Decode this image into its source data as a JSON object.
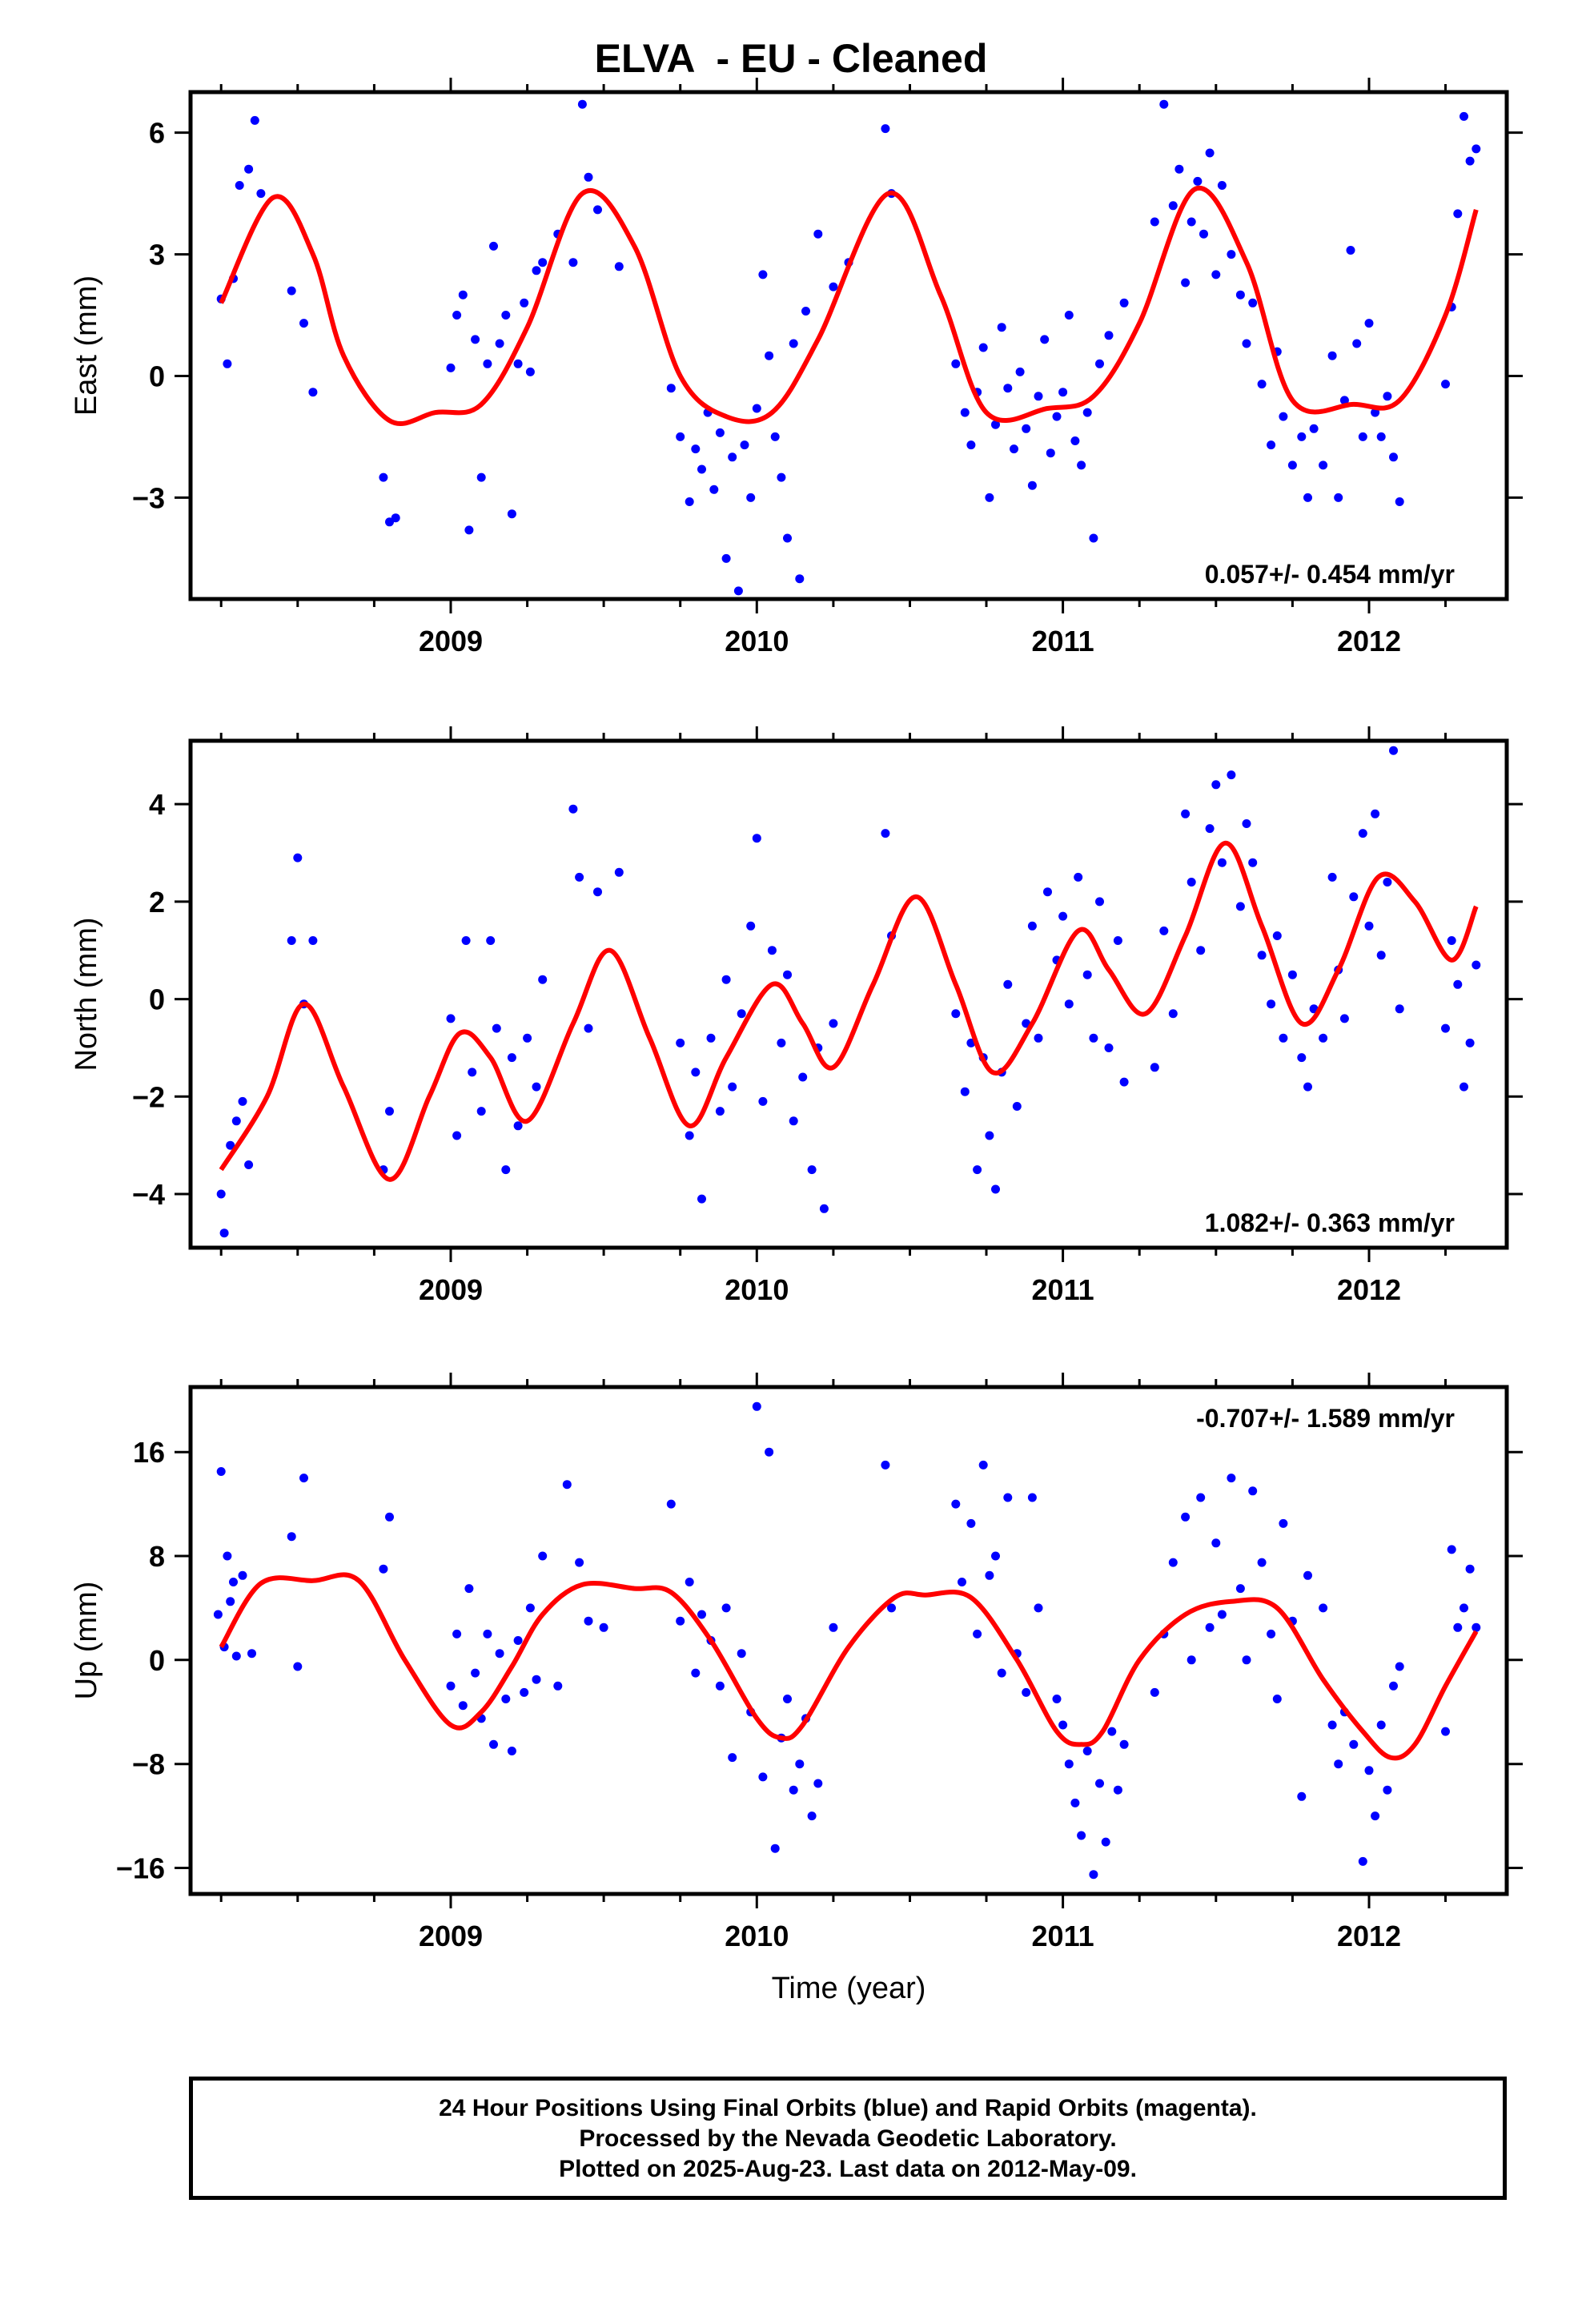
{
  "title": "ELVA  - EU - Cleaned",
  "footer": {
    "line1": "24 Hour Positions Using Final Orbits (blue) and Rapid Orbits (magenta).",
    "line2": "Processed by the Nevada Geodetic Laboratory.",
    "line3": "Plotted on 2025-Aug-23. Last data on 2012-May-09."
  },
  "colors": {
    "points": "#0000ff",
    "fit": "#ff0000",
    "axes": "#000000"
  },
  "chart_data": [
    {
      "type": "scatter",
      "ylabel": "East (mm)",
      "xlabel": "",
      "rate": "0.057+/- 0.454 mm/yr",
      "rate_position": "bottom-right",
      "xlim": [
        2008.15,
        2012.45
      ],
      "ylim": [
        -5.5,
        7
      ],
      "x_ticks": [
        2009,
        2010,
        2011,
        2012
      ],
      "y_ticks": [
        -3,
        0,
        3,
        6
      ],
      "y_tick_labels": [
        "−3",
        "0",
        "3",
        "6"
      ],
      "fit": {
        "x": [
          2008.25,
          2008.42,
          2008.55,
          2008.65,
          2008.8,
          2008.95,
          2009.1,
          2009.25,
          2009.43,
          2009.6,
          2009.75,
          2009.9,
          2010.05,
          2010.2,
          2010.43,
          2010.6,
          2010.75,
          2010.95,
          2011.1,
          2011.25,
          2011.43,
          2011.6,
          2011.75,
          2011.95,
          2012.1,
          2012.25,
          2012.35
        ],
        "y": [
          1.8,
          4.4,
          3.0,
          0.5,
          -1.1,
          -0.9,
          -0.7,
          1.2,
          4.5,
          3.2,
          0.0,
          -1.0,
          -0.9,
          0.9,
          4.5,
          2.0,
          -0.9,
          -0.8,
          -0.5,
          1.3,
          4.6,
          2.8,
          -0.6,
          -0.7,
          -0.6,
          1.5,
          4.1
        ]
      },
      "points": {
        "x": [
          2008.25,
          2008.27,
          2008.29,
          2008.31,
          2008.34,
          2008.36,
          2008.38,
          2008.48,
          2008.52,
          2008.55,
          2008.78,
          2008.8,
          2008.82,
          2009.0,
          2009.02,
          2009.04,
          2009.06,
          2009.08,
          2009.1,
          2009.12,
          2009.14,
          2009.16,
          2009.18,
          2009.2,
          2009.22,
          2009.24,
          2009.26,
          2009.28,
          2009.3,
          2009.35,
          2009.4,
          2009.43,
          2009.45,
          2009.48,
          2009.55,
          2009.72,
          2009.75,
          2009.78,
          2009.8,
          2009.82,
          2009.84,
          2009.86,
          2009.88,
          2009.9,
          2009.92,
          2009.94,
          2009.96,
          2009.98,
          2010.0,
          2010.02,
          2010.04,
          2010.06,
          2010.08,
          2010.1,
          2010.12,
          2010.14,
          2010.16,
          2010.2,
          2010.25,
          2010.3,
          2010.42,
          2010.44,
          2010.65,
          2010.68,
          2010.7,
          2010.72,
          2010.74,
          2010.76,
          2010.78,
          2010.8,
          2010.82,
          2010.84,
          2010.86,
          2010.88,
          2010.9,
          2010.92,
          2010.94,
          2010.96,
          2010.98,
          2011.0,
          2011.02,
          2011.04,
          2011.06,
          2011.08,
          2011.1,
          2011.12,
          2011.15,
          2011.2,
          2011.3,
          2011.33,
          2011.36,
          2011.38,
          2011.4,
          2011.42,
          2011.44,
          2011.46,
          2011.48,
          2011.5,
          2011.52,
          2011.55,
          2011.58,
          2011.6,
          2011.62,
          2011.65,
          2011.68,
          2011.7,
          2011.72,
          2011.75,
          2011.78,
          2011.8,
          2011.82,
          2011.85,
          2011.88,
          2011.9,
          2011.92,
          2011.94,
          2011.96,
          2011.98,
          2012.0,
          2012.02,
          2012.04,
          2012.06,
          2012.08,
          2012.1,
          2012.25,
          2012.27,
          2012.29,
          2012.31,
          2012.33,
          2012.35
        ],
        "y": [
          1.9,
          0.3,
          2.4,
          4.7,
          5.1,
          6.3,
          4.5,
          2.1,
          1.3,
          -0.4,
          -2.5,
          -3.6,
          -3.5,
          0.2,
          1.5,
          2.0,
          -3.8,
          0.9,
          -2.5,
          0.3,
          3.2,
          0.8,
          1.5,
          -3.4,
          0.3,
          1.8,
          0.1,
          2.6,
          2.8,
          3.5,
          2.8,
          6.7,
          4.9,
          4.1,
          2.7,
          -0.3,
          -1.5,
          -3.1,
          -1.8,
          -2.3,
          -0.9,
          -2.8,
          -1.4,
          -4.5,
          -2.0,
          -5.3,
          -1.7,
          -3.0,
          -0.8,
          2.5,
          0.5,
          -1.5,
          -2.5,
          -4.0,
          0.8,
          -5.0,
          1.6,
          3.5,
          2.2,
          2.8,
          6.1,
          4.5,
          0.3,
          -0.9,
          -1.7,
          -0.4,
          0.7,
          -3.0,
          -1.2,
          1.2,
          -0.3,
          -1.8,
          0.1,
          -1.3,
          -2.7,
          -0.5,
          0.9,
          -1.9,
          -1.0,
          -0.4,
          1.5,
          -1.6,
          -2.2,
          -0.9,
          -4.0,
          0.3,
          1.0,
          1.8,
          3.8,
          6.7,
          4.2,
          5.1,
          2.3,
          3.8,
          4.8,
          3.5,
          5.5,
          2.5,
          4.7,
          3.0,
          2.0,
          0.8,
          1.8,
          -0.2,
          -1.7,
          0.6,
          -1.0,
          -2.2,
          -1.5,
          -3.0,
          -1.3,
          -2.2,
          0.5,
          -3.0,
          -0.6,
          3.1,
          0.8,
          -1.5,
          1.3,
          -0.9,
          -1.5,
          -0.5,
          -2.0,
          -3.1,
          -0.2,
          1.7,
          4.0,
          6.4,
          5.3,
          5.6
        ]
      }
    },
    {
      "type": "scatter",
      "ylabel": "North (mm)",
      "xlabel": "",
      "rate": "1.082+/- 0.363 mm/yr",
      "rate_position": "bottom-right",
      "xlim": [
        2008.15,
        2012.45
      ],
      "ylim": [
        -5.1,
        5.3
      ],
      "x_ticks": [
        2009,
        2010,
        2011,
        2012
      ],
      "y_ticks": [
        -4,
        -2,
        0,
        2,
        4
      ],
      "y_tick_labels": [
        "−4",
        "−2",
        "0",
        "2",
        "4"
      ],
      "fit": {
        "x": [
          2008.25,
          2008.4,
          2008.52,
          2008.65,
          2008.8,
          2008.93,
          2009.03,
          2009.13,
          2009.25,
          2009.4,
          2009.52,
          2009.65,
          2009.78,
          2009.9,
          2010.05,
          2010.15,
          2010.25,
          2010.38,
          2010.52,
          2010.65,
          2010.77,
          2010.9,
          2011.05,
          2011.15,
          2011.27,
          2011.4,
          2011.53,
          2011.65,
          2011.78,
          2011.9,
          2012.03,
          2012.15,
          2012.27,
          2012.35
        ],
        "y": [
          -3.5,
          -2.0,
          -0.1,
          -1.8,
          -3.7,
          -2.0,
          -0.7,
          -1.2,
          -2.5,
          -0.5,
          1.0,
          -0.8,
          -2.6,
          -1.2,
          0.3,
          -0.5,
          -1.4,
          0.3,
          2.1,
          0.3,
          -1.5,
          -0.5,
          1.4,
          0.6,
          -0.3,
          1.3,
          3.2,
          1.5,
          -0.5,
          0.6,
          2.5,
          2.0,
          0.8,
          1.9
        ]
      },
      "points": {
        "x": [
          2008.25,
          2008.26,
          2008.28,
          2008.3,
          2008.32,
          2008.34,
          2008.48,
          2008.5,
          2008.52,
          2008.55,
          2008.78,
          2008.8,
          2009.0,
          2009.02,
          2009.05,
          2009.07,
          2009.1,
          2009.13,
          2009.15,
          2009.18,
          2009.2,
          2009.22,
          2009.25,
          2009.28,
          2009.3,
          2009.4,
          2009.42,
          2009.45,
          2009.48,
          2009.55,
          2009.75,
          2009.78,
          2009.8,
          2009.82,
          2009.85,
          2009.88,
          2009.9,
          2009.92,
          2009.95,
          2009.98,
          2010.0,
          2010.02,
          2010.05,
          2010.08,
          2010.1,
          2010.12,
          2010.15,
          2010.18,
          2010.2,
          2010.22,
          2010.25,
          2010.42,
          2010.44,
          2010.65,
          2010.68,
          2010.7,
          2010.72,
          2010.74,
          2010.76,
          2010.78,
          2010.8,
          2010.82,
          2010.85,
          2010.88,
          2010.9,
          2010.92,
          2010.95,
          2010.98,
          2011.0,
          2011.02,
          2011.05,
          2011.08,
          2011.1,
          2011.12,
          2011.15,
          2011.18,
          2011.2,
          2011.3,
          2011.33,
          2011.36,
          2011.4,
          2011.42,
          2011.45,
          2011.48,
          2011.5,
          2011.52,
          2011.55,
          2011.58,
          2011.6,
          2011.62,
          2011.65,
          2011.68,
          2011.7,
          2011.72,
          2011.75,
          2011.78,
          2011.8,
          2011.82,
          2011.85,
          2011.88,
          2011.9,
          2011.92,
          2011.95,
          2011.98,
          2012.0,
          2012.02,
          2012.04,
          2012.06,
          2012.08,
          2012.1,
          2012.25,
          2012.27,
          2012.29,
          2012.31,
          2012.33,
          2012.35
        ],
        "y": [
          -4.0,
          -4.8,
          -3.0,
          -2.5,
          -2.1,
          -3.4,
          1.2,
          2.9,
          -0.1,
          1.2,
          -3.5,
          -2.3,
          -0.4,
          -2.8,
          1.2,
          -1.5,
          -2.3,
          1.2,
          -0.6,
          -3.5,
          -1.2,
          -2.6,
          -0.8,
          -1.8,
          0.4,
          3.9,
          2.5,
          -0.6,
          2.2,
          2.6,
          -0.9,
          -2.8,
          -1.5,
          -4.1,
          -0.8,
          -2.3,
          0.4,
          -1.8,
          -0.3,
          1.5,
          3.3,
          -2.1,
          1.0,
          -0.9,
          0.5,
          -2.5,
          -1.6,
          -3.5,
          -1.0,
          -4.3,
          -0.5,
          3.4,
          1.3,
          -0.3,
          -1.9,
          -0.9,
          -3.5,
          -1.2,
          -2.8,
          -3.9,
          -1.5,
          0.3,
          -2.2,
          -0.5,
          1.5,
          -0.8,
          2.2,
          0.8,
          1.7,
          -0.1,
          2.5,
          0.5,
          -0.8,
          2.0,
          -1.0,
          1.2,
          -1.7,
          -1.4,
          1.4,
          -0.3,
          3.8,
          2.4,
          1.0,
          3.5,
          4.4,
          2.8,
          4.6,
          1.9,
          3.6,
          2.8,
          0.9,
          -0.1,
          1.3,
          -0.8,
          0.5,
          -1.2,
          -1.8,
          -0.2,
          -0.8,
          2.5,
          0.6,
          -0.4,
          2.1,
          3.4,
          1.5,
          3.8,
          0.9,
          2.4,
          5.1,
          -0.2,
          -0.6,
          1.2,
          0.3,
          -1.8,
          -0.9,
          0.7
        ]
      }
    },
    {
      "type": "scatter",
      "ylabel": "Up (mm)",
      "xlabel": "Time (year)",
      "rate": "-0.707+/- 1.589 mm/yr",
      "rate_position": "top-right",
      "xlim": [
        2008.15,
        2012.45
      ],
      "ylim": [
        -18,
        21
      ],
      "x_ticks": [
        2009,
        2010,
        2011,
        2012
      ],
      "y_ticks": [
        -16,
        -8,
        0,
        8,
        16
      ],
      "y_tick_labels": [
        "−16",
        "−8",
        "0",
        "8",
        "16"
      ],
      "fit": {
        "x": [
          2008.25,
          2008.38,
          2008.55,
          2008.7,
          2008.85,
          2009.0,
          2009.1,
          2009.2,
          2009.3,
          2009.43,
          2009.6,
          2009.72,
          2009.85,
          2010.0,
          2010.08,
          2010.15,
          2010.3,
          2010.45,
          2010.55,
          2010.7,
          2010.85,
          2010.98,
          2011.06,
          2011.13,
          2011.25,
          2011.4,
          2011.55,
          2011.7,
          2011.85,
          2011.98,
          2012.07,
          2012.15,
          2012.25,
          2012.35
        ],
        "y": [
          1.0,
          5.9,
          6.1,
          6.1,
          0.0,
          -5.0,
          -4.0,
          -0.5,
          3.5,
          5.8,
          5.5,
          5.2,
          1.5,
          -4.5,
          -6.0,
          -5.0,
          1.0,
          4.8,
          5.0,
          4.8,
          0.0,
          -5.5,
          -6.5,
          -5.5,
          0.0,
          3.5,
          4.5,
          4.0,
          -1.5,
          -5.5,
          -7.5,
          -6.5,
          -2.0,
          2.2
        ]
      },
      "points": {
        "x": [
          2008.24,
          2008.25,
          2008.26,
          2008.27,
          2008.28,
          2008.29,
          2008.3,
          2008.32,
          2008.35,
          2008.48,
          2008.5,
          2008.52,
          2008.78,
          2008.8,
          2009.0,
          2009.02,
          2009.04,
          2009.06,
          2009.08,
          2009.1,
          2009.12,
          2009.14,
          2009.16,
          2009.18,
          2009.2,
          2009.22,
          2009.24,
          2009.26,
          2009.28,
          2009.3,
          2009.35,
          2009.38,
          2009.42,
          2009.45,
          2009.5,
          2009.72,
          2009.75,
          2009.78,
          2009.8,
          2009.82,
          2009.85,
          2009.88,
          2009.9,
          2009.92,
          2009.95,
          2009.98,
          2010.0,
          2010.02,
          2010.04,
          2010.06,
          2010.08,
          2010.1,
          2010.12,
          2010.14,
          2010.16,
          2010.18,
          2010.2,
          2010.25,
          2010.42,
          2010.44,
          2010.65,
          2010.67,
          2010.7,
          2010.72,
          2010.74,
          2010.76,
          2010.78,
          2010.8,
          2010.82,
          2010.85,
          2010.88,
          2010.9,
          2010.92,
          2010.98,
          2011.0,
          2011.02,
          2011.04,
          2011.06,
          2011.08,
          2011.1,
          2011.12,
          2011.14,
          2011.16,
          2011.18,
          2011.2,
          2011.3,
          2011.33,
          2011.36,
          2011.4,
          2011.42,
          2011.45,
          2011.48,
          2011.5,
          2011.52,
          2011.55,
          2011.58,
          2011.6,
          2011.62,
          2011.65,
          2011.68,
          2011.7,
          2011.72,
          2011.75,
          2011.78,
          2011.8,
          2011.85,
          2011.88,
          2011.9,
          2011.92,
          2011.95,
          2011.98,
          2012.0,
          2012.02,
          2012.04,
          2012.06,
          2012.08,
          2012.1,
          2012.25,
          2012.27,
          2012.29,
          2012.31,
          2012.33,
          2012.35
        ],
        "y": [
          3.5,
          14.5,
          1.0,
          8.0,
          4.5,
          6.0,
          0.3,
          6.5,
          0.5,
          9.5,
          -0.5,
          14.0,
          7.0,
          11.0,
          -2.0,
          2.0,
          -3.5,
          5.5,
          -1.0,
          -4.5,
          2.0,
          -6.5,
          0.5,
          -3.0,
          -7.0,
          1.5,
          -2.5,
          4.0,
          -1.5,
          8.0,
          -2.0,
          13.5,
          7.5,
          3.0,
          2.5,
          12.0,
          3.0,
          6.0,
          -1.0,
          3.5,
          1.5,
          -2.0,
          4.0,
          -7.5,
          0.5,
          -4.0,
          19.5,
          -9.0,
          16.0,
          -14.5,
          -6.0,
          -3.0,
          -10.0,
          -8.0,
          -4.5,
          -12.0,
          -9.5,
          2.5,
          15.0,
          4.0,
          12.0,
          6.0,
          10.5,
          2.0,
          15.0,
          6.5,
          8.0,
          -1.0,
          12.5,
          0.5,
          -2.5,
          12.5,
          4.0,
          -3.0,
          -5.0,
          -8.0,
          -11.0,
          -13.5,
          -7.0,
          -16.5,
          -9.5,
          -14.0,
          -5.5,
          -10.0,
          -6.5,
          -2.5,
          2.0,
          7.5,
          11.0,
          0.0,
          12.5,
          2.5,
          9.0,
          3.5,
          14.0,
          5.5,
          0.0,
          13.0,
          7.5,
          2.0,
          -3.0,
          10.5,
          3.0,
          -10.5,
          6.5,
          4.0,
          -5.0,
          -8.0,
          -4.0,
          -6.5,
          -15.5,
          -8.5,
          -12.0,
          -5.0,
          -10.0,
          -2.0,
          -0.5,
          -5.5,
          8.5,
          2.5,
          4.0,
          7.0,
          2.5
        ]
      }
    }
  ]
}
